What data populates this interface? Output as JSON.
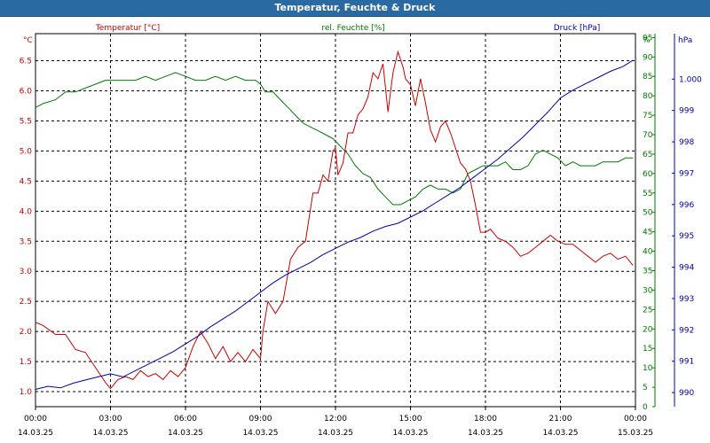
{
  "window": {
    "title": "Temperatur, Feuchte & Druck"
  },
  "colors": {
    "temperature": "#cc0000",
    "humidity": "#007a00",
    "pressure": "#0000aa",
    "grid": "#000000"
  },
  "chart_data": {
    "type": "line",
    "title": "Temperatur, Feuchte & Druck",
    "grid": true,
    "x_ticks": [
      {
        "time": "00:00",
        "date": "14.03.25"
      },
      {
        "time": "03:00",
        "date": "14.03.25"
      },
      {
        "time": "06:00",
        "date": "14.03.25"
      },
      {
        "time": "09:00",
        "date": "14.03.25"
      },
      {
        "time": "12:00",
        "date": "14.03.25"
      },
      {
        "time": "15:00",
        "date": "14.03.25"
      },
      {
        "time": "18:00",
        "date": "14.03.25"
      },
      {
        "time": "21:00",
        "date": "14.03.25"
      },
      {
        "time": "00:00",
        "date": "15.03.25"
      }
    ],
    "x_range_hours": [
      0,
      24
    ],
    "axes": {
      "left": {
        "unit": "°C",
        "range": [
          0.75,
          6.95
        ],
        "ticks": [
          "1.0",
          "1.5",
          "2.0",
          "2.5",
          "3.0",
          "3.5",
          "4.0",
          "4.5",
          "5.0",
          "5.5",
          "6.0",
          "6.5"
        ]
      },
      "middle": {
        "unit": "%",
        "range": [
          0,
          96
        ],
        "ticks": [
          "0",
          "5",
          "10",
          "15",
          "20",
          "25",
          "30",
          "35",
          "40",
          "45",
          "50",
          "55",
          "60",
          "65",
          "70",
          "75",
          "80",
          "85",
          "90",
          "95",
          "%"
        ]
      },
      "right": {
        "unit": "hPa",
        "range": [
          989.55,
          1001.45
        ],
        "ticks": [
          "990",
          "991",
          "992",
          "993",
          "994",
          "995",
          "996",
          "997",
          "998",
          "999",
          "1.000"
        ]
      }
    },
    "series": [
      {
        "name": "Temperatur [°C]",
        "axis": "left",
        "color": "#cc0000",
        "x": [
          0,
          0.3,
          0.8,
          1.2,
          1.6,
          2.0,
          2.4,
          2.8,
          3.0,
          3.3,
          3.6,
          3.9,
          4.2,
          4.5,
          4.8,
          5.1,
          5.4,
          5.7,
          6.0,
          6.3,
          6.6,
          6.9,
          7.2,
          7.5,
          7.8,
          8.1,
          8.4,
          8.7,
          9.0,
          9.1,
          9.3,
          9.6,
          9.9,
          10.2,
          10.5,
          10.8,
          11.1,
          11.3,
          11.5,
          11.7,
          11.9,
          12.0,
          12.1,
          12.3,
          12.5,
          12.7,
          12.9,
          13.1,
          13.3,
          13.5,
          13.7,
          13.9,
          14.1,
          14.3,
          14.5,
          14.7,
          14.8,
          15.0,
          15.2,
          15.4,
          15.6,
          15.8,
          16.0,
          16.2,
          16.4,
          16.6,
          16.8,
          17.0,
          17.2,
          17.4,
          17.6,
          17.8,
          18.0,
          18.2,
          18.5,
          18.8,
          19.1,
          19.4,
          19.7,
          20.0,
          20.3,
          20.6,
          20.9,
          21.2,
          21.5,
          21.8,
          22.1,
          22.4,
          22.7,
          23.0,
          23.3,
          23.6,
          23.9
        ],
        "y": [
          2.15,
          2.1,
          1.95,
          1.95,
          1.7,
          1.65,
          1.4,
          1.15,
          1.05,
          1.2,
          1.25,
          1.2,
          1.35,
          1.25,
          1.3,
          1.2,
          1.35,
          1.25,
          1.4,
          1.75,
          2.0,
          1.8,
          1.55,
          1.75,
          1.5,
          1.65,
          1.5,
          1.7,
          1.55,
          2.0,
          2.5,
          2.3,
          2.5,
          3.2,
          3.4,
          3.5,
          4.3,
          4.3,
          4.6,
          4.5,
          5.0,
          5.05,
          4.6,
          4.8,
          5.3,
          5.3,
          5.6,
          5.7,
          5.9,
          6.3,
          6.2,
          6.45,
          5.65,
          6.3,
          6.65,
          6.4,
          6.2,
          6.1,
          5.75,
          6.2,
          5.8,
          5.35,
          5.15,
          5.4,
          5.5,
          5.3,
          5.05,
          4.8,
          4.7,
          4.5,
          4.1,
          3.65,
          3.65,
          3.7,
          3.55,
          3.5,
          3.4,
          3.25,
          3.3,
          3.4,
          3.5,
          3.6,
          3.5,
          3.45,
          3.45,
          3.35,
          3.25,
          3.15,
          3.25,
          3.3,
          3.2,
          3.25,
          3.1
        ]
      },
      {
        "name": "rel. Feuchte [%]",
        "axis": "middle",
        "color": "#007a00",
        "x": [
          0,
          0.3,
          0.8,
          1.2,
          1.6,
          2.0,
          2.4,
          2.8,
          3.2,
          3.6,
          4.0,
          4.4,
          4.8,
          5.2,
          5.6,
          6.0,
          6.4,
          6.8,
          7.2,
          7.6,
          8.0,
          8.4,
          8.8,
          9.0,
          9.2,
          9.5,
          9.8,
          10.1,
          10.4,
          10.7,
          11.0,
          11.3,
          11.6,
          11.9,
          12.2,
          12.5,
          12.8,
          13.1,
          13.4,
          13.7,
          14.0,
          14.3,
          14.6,
          14.9,
          15.2,
          15.5,
          15.8,
          16.1,
          16.4,
          16.7,
          17.0,
          17.3,
          17.6,
          17.9,
          18.2,
          18.5,
          18.8,
          19.1,
          19.4,
          19.7,
          20.0,
          20.3,
          20.6,
          20.9,
          21.2,
          21.5,
          21.8,
          22.1,
          22.4,
          22.7,
          23.0,
          23.3,
          23.6,
          23.9
        ],
        "y": [
          77,
          78,
          79,
          81,
          81,
          82,
          83,
          84,
          84,
          84,
          84,
          85,
          84,
          85,
          86,
          85,
          84,
          84,
          85,
          84,
          85,
          84,
          84,
          83,
          81,
          81,
          79,
          77,
          75,
          73,
          72,
          71,
          70,
          69,
          67,
          65,
          62,
          60,
          59,
          56,
          54,
          52,
          52,
          53,
          54,
          56,
          57,
          56,
          56,
          55,
          56,
          60,
          61,
          62,
          62,
          62,
          63,
          61,
          61,
          62,
          65,
          66,
          65,
          64,
          62,
          63,
          62,
          62,
          62,
          63,
          63,
          63,
          64,
          64
        ]
      },
      {
        "name": "Druck [hPa]",
        "axis": "right",
        "color": "#0000aa",
        "x": [
          0,
          0.5,
          1.0,
          1.5,
          2.0,
          2.5,
          3.0,
          3.5,
          4.0,
          4.5,
          5.0,
          5.5,
          6.0,
          6.5,
          7.0,
          7.5,
          8.0,
          8.5,
          9.0,
          9.5,
          10.0,
          10.5,
          11.0,
          11.5,
          12.0,
          12.5,
          13.0,
          13.5,
          14.0,
          14.5,
          15.0,
          15.5,
          16.0,
          16.5,
          17.0,
          17.5,
          18.0,
          18.5,
          19.0,
          19.5,
          20.0,
          20.5,
          21.0,
          21.5,
          22.0,
          22.5,
          23.0,
          23.5,
          23.9
        ],
        "y": [
          990.1,
          990.2,
          990.15,
          990.3,
          990.4,
          990.5,
          990.6,
          990.5,
          990.7,
          990.9,
          991.1,
          991.3,
          991.55,
          991.8,
          992.1,
          992.35,
          992.6,
          992.9,
          993.2,
          993.5,
          993.75,
          993.95,
          994.15,
          994.4,
          994.6,
          994.8,
          994.95,
          995.15,
          995.3,
          995.4,
          995.6,
          995.8,
          996.05,
          996.3,
          996.55,
          996.85,
          997.15,
          997.45,
          997.8,
          998.15,
          998.55,
          998.95,
          999.4,
          999.65,
          999.85,
          1000.05,
          1000.25,
          1000.4,
          1000.6
        ]
      }
    ]
  }
}
